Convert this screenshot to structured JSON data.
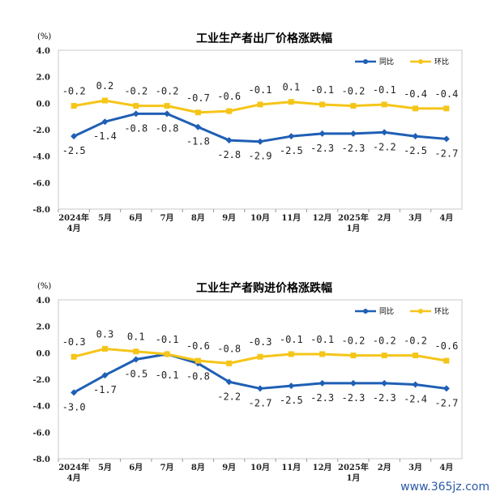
{
  "chart_data": [
    {
      "type": "line",
      "title": "工业生产者出厂价格涨跌幅",
      "unit": "(%)",
      "categories": [
        [
          "2024年",
          "4月"
        ],
        [
          "5月"
        ],
        [
          "6月"
        ],
        [
          "7月"
        ],
        [
          "8月"
        ],
        [
          "9月"
        ],
        [
          "10月"
        ],
        [
          "11月"
        ],
        [
          "12月"
        ],
        [
          "2025年",
          "1月"
        ],
        [
          "2月"
        ],
        [
          "3月"
        ],
        [
          "4月"
        ]
      ],
      "ylim": [
        -8.0,
        4.0
      ],
      "yticks": [
        "4.0",
        "2.0",
        "0.0",
        "-2.0",
        "-4.0",
        "-6.0",
        "-8.0"
      ],
      "legend_position": "top-right",
      "series": [
        {
          "name": "同比",
          "color": "#1f5fb5",
          "values": [
            -2.5,
            -1.4,
            -0.8,
            -0.8,
            -1.8,
            -2.8,
            -2.9,
            -2.5,
            -2.3,
            -2.3,
            -2.2,
            -2.5,
            -2.7
          ],
          "labels": [
            "-2.5",
            "-1.4",
            "-0.8",
            "-0.8",
            "-1.8",
            "-2.8",
            "-2.9",
            "-2.5",
            "-2.3",
            "-2.3",
            "-2.2",
            "-2.5",
            "-2.7"
          ]
        },
        {
          "name": "环比",
          "color": "#f5c518",
          "values": [
            -0.2,
            0.2,
            -0.2,
            -0.2,
            -0.7,
            -0.6,
            -0.1,
            0.1,
            -0.1,
            -0.2,
            -0.1,
            -0.4,
            -0.4
          ],
          "labels": [
            "-0.2",
            "0.2",
            "-0.2",
            "-0.2",
            "-0.7",
            "-0.6",
            "-0.1",
            "0.1",
            "-0.1",
            "-0.2",
            "-0.1",
            "-0.4",
            "-0.4"
          ]
        }
      ]
    },
    {
      "type": "line",
      "title": "工业生产者购进价格涨跌幅",
      "unit": "(%)",
      "categories": [
        [
          "2024年",
          "4月"
        ],
        [
          "5月"
        ],
        [
          "6月"
        ],
        [
          "7月"
        ],
        [
          "8月"
        ],
        [
          "9月"
        ],
        [
          "10月"
        ],
        [
          "11月"
        ],
        [
          "12月"
        ],
        [
          "2025年",
          "1月"
        ],
        [
          "2月"
        ],
        [
          "3月"
        ],
        [
          "4月"
        ]
      ],
      "ylim": [
        -8.0,
        4.0
      ],
      "yticks": [
        "4.0",
        "2.0",
        "0.0",
        "-2.0",
        "-4.0",
        "-6.0",
        "-8.0"
      ],
      "legend_position": "top-right",
      "series": [
        {
          "name": "同比",
          "color": "#1f5fb5",
          "values": [
            -3.0,
            -1.7,
            -0.5,
            -0.1,
            -0.8,
            -2.2,
            -2.7,
            -2.5,
            -2.3,
            -2.3,
            -2.3,
            -2.4,
            -2.7
          ],
          "labels": [
            "-3.0",
            "-1.7",
            "-0.5",
            "-0.1",
            "-0.8",
            "-2.2",
            "-2.7",
            "-2.5",
            "-2.3",
            "-2.3",
            "-2.3",
            "-2.4",
            "-2.7"
          ]
        },
        {
          "name": "环比",
          "color": "#f5c518",
          "values": [
            -0.3,
            0.3,
            0.1,
            -0.1,
            -0.6,
            -0.8,
            -0.3,
            -0.1,
            -0.1,
            -0.2,
            -0.2,
            -0.2,
            -0.6
          ],
          "labels": [
            "-0.3",
            "0.3",
            "0.1",
            "-0.1",
            "-0.6",
            "-0.8",
            "-0.3",
            "-0.1",
            "-0.1",
            "-0.2",
            "-0.2",
            "-0.2",
            "-0.6"
          ]
        }
      ]
    }
  ],
  "watermark": "www.365jz.com"
}
